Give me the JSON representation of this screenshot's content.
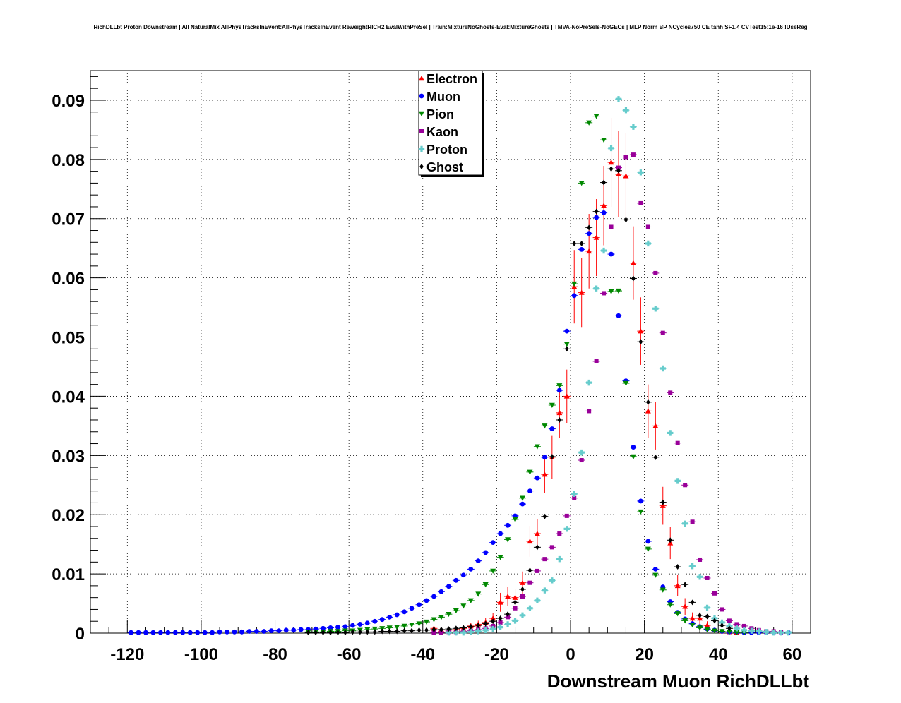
{
  "chart_data": {
    "type": "scatter",
    "title": "RichDLLbt Proton Downstream | All NaturalMix AllPhysTracksInEvent:AllPhysTracksInEvent ReweightRICH2 EvalWithPreSel | Train:MixtureNoGhosts-Eval:MixtureGhosts | TMVA-NoPreSels-NoGECs | MLP Norm BP NCycles750 CE tanh SF1.4 CVTest15:1e-16 !UseReg",
    "xlabel": "Downstream Muon RichDLLbt",
    "ylabel": "",
    "xlim": [
      -130,
      65
    ],
    "ylim": [
      0,
      0.095
    ],
    "xticks": [
      -120,
      -100,
      -80,
      -60,
      -40,
      -20,
      0,
      20,
      40,
      60
    ],
    "yticks": [
      0,
      0.01,
      0.02,
      0.03,
      0.04,
      0.05,
      0.06,
      0.07,
      0.08,
      0.09
    ],
    "xtick_labels": [
      "-120",
      "-100",
      "-80",
      "-60",
      "-40",
      "-20",
      "0",
      "20",
      "40",
      "60"
    ],
    "ytick_labels": [
      "0",
      "0.01",
      "0.02",
      "0.03",
      "0.04",
      "0.05",
      "0.06",
      "0.07",
      "0.08",
      "0.09"
    ],
    "grid": true,
    "legend_position": "top-center",
    "series": [
      {
        "name": "Electron",
        "color": "#ff0000",
        "marker": "triangle-up",
        "x": [
          -37,
          -35,
          -33,
          -31,
          -29,
          -27,
          -25,
          -23,
          -21,
          -19,
          -17,
          -15,
          -13,
          -11,
          -9,
          -7,
          -5,
          -3,
          -1,
          1,
          3,
          5,
          7,
          9,
          11,
          13,
          15,
          17,
          19,
          21,
          23,
          25,
          27,
          29,
          31,
          33,
          35,
          37,
          39,
          41,
          43,
          45
        ],
        "y": [
          0.0008,
          0.0006,
          0.0005,
          0.0006,
          0.0008,
          0.0012,
          0.0015,
          0.0018,
          0.0025,
          0.0052,
          0.0062,
          0.006,
          0.0085,
          0.0155,
          0.0168,
          0.0268,
          0.0297,
          0.0372,
          0.04,
          0.0585,
          0.0575,
          0.0645,
          0.0668,
          0.0722,
          0.0795,
          0.0775,
          0.0772,
          0.0625,
          0.051,
          0.0375,
          0.035,
          0.0215,
          0.0152,
          0.008,
          0.0045,
          0.0025,
          0.0025,
          0.0013,
          0.0005,
          0.0003,
          0.0002,
          0.0001
        ],
        "err": [
          0.0004,
          0.0004,
          0.0003,
          0.0003,
          0.0004,
          0.0005,
          0.0006,
          0.0007,
          0.0009,
          0.0016,
          0.0016,
          0.0015,
          0.0019,
          0.0026,
          0.0025,
          0.0032,
          0.0036,
          0.0043,
          0.0045,
          0.0062,
          0.0058,
          0.0063,
          0.0065,
          0.0067,
          0.0075,
          0.0073,
          0.0072,
          0.0062,
          0.0057,
          0.0045,
          0.004,
          0.0032,
          0.0027,
          0.0018,
          0.0014,
          0.001,
          0.001,
          0.0007,
          0.0004,
          0.0003,
          0.0002,
          0.0001
        ]
      },
      {
        "name": "Muon",
        "color": "#0000ff",
        "marker": "circle",
        "x": [
          -119,
          -117,
          -115,
          -113,
          -111,
          -109,
          -107,
          -105,
          -103,
          -101,
          -99,
          -97,
          -95,
          -93,
          -91,
          -89,
          -87,
          -85,
          -83,
          -81,
          -79,
          -77,
          -75,
          -73,
          -71,
          -69,
          -67,
          -65,
          -63,
          -61,
          -59,
          -57,
          -55,
          -53,
          -51,
          -49,
          -47,
          -45,
          -43,
          -41,
          -39,
          -37,
          -35,
          -33,
          -31,
          -29,
          -27,
          -25,
          -23,
          -21,
          -19,
          -17,
          -15,
          -13,
          -11,
          -9,
          -7,
          -5,
          -3,
          -1,
          1,
          3,
          5,
          7,
          9,
          11,
          13,
          15,
          17,
          19,
          21,
          23,
          25,
          27,
          29,
          31,
          33,
          35,
          37,
          39,
          41,
          43,
          45,
          47,
          49,
          51,
          53,
          55,
          57,
          59
        ],
        "y": [
          0.0001,
          0.0001,
          0.0001,
          0.0001,
          0.0001,
          0.0001,
          0.0001,
          0.0001,
          0.0001,
          0.0001,
          0.0001,
          0.0001,
          0.0002,
          0.0002,
          0.0002,
          0.0002,
          0.0003,
          0.0003,
          0.0003,
          0.0004,
          0.0004,
          0.0005,
          0.0005,
          0.0006,
          0.0006,
          0.0007,
          0.0008,
          0.0009,
          0.001,
          0.0011,
          0.0013,
          0.0015,
          0.0017,
          0.002,
          0.0023,
          0.0027,
          0.0031,
          0.0036,
          0.0042,
          0.0048,
          0.0055,
          0.0062,
          0.007,
          0.0079,
          0.0089,
          0.0098,
          0.0108,
          0.0122,
          0.0136,
          0.0153,
          0.0168,
          0.0182,
          0.0198,
          0.0218,
          0.024,
          0.0262,
          0.0297,
          0.0345,
          0.041,
          0.051,
          0.057,
          0.0648,
          0.0675,
          0.0702,
          0.071,
          0.064,
          0.0536,
          0.0426,
          0.0314,
          0.0223,
          0.0155,
          0.0108,
          0.0078,
          0.0053,
          0.0035,
          0.0024,
          0.0016,
          0.0011,
          0.0007,
          0.0005,
          0.0003,
          0.0002,
          0.0002,
          0.0001,
          0.0001,
          0.0001,
          0.0001,
          0.0001,
          0.0001,
          0.0001
        ],
        "err": [
          3e-05,
          3e-05,
          3e-05,
          3e-05,
          3e-05,
          3e-05,
          3e-05,
          3e-05,
          3e-05,
          3e-05,
          3e-05,
          3e-05,
          3e-05,
          3e-05,
          3e-05,
          3e-05,
          4e-05,
          4e-05,
          4e-05,
          4e-05,
          4e-05,
          5e-05,
          5e-05,
          5e-05,
          5e-05,
          5e-05,
          6e-05,
          6e-05,
          6e-05,
          7e-05,
          7e-05,
          8e-05,
          8e-05,
          9e-05,
          0.0001,
          0.0001,
          0.0001,
          0.0001,
          0.0001,
          0.0001,
          0.0001,
          0.0001,
          0.0001,
          0.0001,
          0.0001,
          0.0001,
          0.0001,
          0.0001,
          0.0001,
          0.0001,
          0.0001,
          0.0001,
          0.0001,
          0.0001,
          0.0001,
          0.0001,
          0.0001,
          0.0001,
          0.0001,
          0.0001,
          0.0001,
          0.0001,
          0.0001,
          0.0001,
          0.0001,
          0.0001,
          0.0001,
          0.0001,
          0.0001,
          0.0001,
          0.0001,
          0.0001,
          0.0001,
          0.0001,
          0.0001,
          0.0001,
          0.0001,
          0.0001,
          0.0001,
          0.0001,
          0.0001,
          0.0001,
          0.0001,
          0.0001,
          0.0001,
          0.0001,
          0.0001,
          0.0001,
          0.0001,
          0.0001
        ]
      },
      {
        "name": "Pion",
        "color": "#008800",
        "marker": "triangle-down",
        "x": [
          -71,
          -69,
          -67,
          -65,
          -63,
          -61,
          -59,
          -57,
          -55,
          -53,
          -51,
          -49,
          -47,
          -45,
          -43,
          -41,
          -39,
          -37,
          -35,
          -33,
          -31,
          -29,
          -27,
          -25,
          -23,
          -21,
          -19,
          -17,
          -15,
          -13,
          -11,
          -9,
          -7,
          -5,
          -3,
          -1,
          1,
          3,
          5,
          7,
          9,
          11,
          13,
          15,
          17,
          19,
          21,
          23,
          25,
          27,
          29,
          31,
          33,
          35,
          37,
          39,
          41,
          43,
          45,
          47
        ],
        "y": [
          0.0002,
          0.0002,
          0.0002,
          0.0003,
          0.0003,
          0.0004,
          0.0004,
          0.0005,
          0.0006,
          0.0007,
          0.0008,
          0.0009,
          0.001,
          0.0012,
          0.0014,
          0.0016,
          0.0019,
          0.0023,
          0.0027,
          0.0032,
          0.0038,
          0.0046,
          0.0055,
          0.0066,
          0.0082,
          0.0105,
          0.0128,
          0.0158,
          0.0192,
          0.0228,
          0.0272,
          0.0315,
          0.035,
          0.0385,
          0.0418,
          0.0488,
          0.059,
          0.076,
          0.0862,
          0.0873,
          0.0833,
          0.0577,
          0.0578,
          0.0422,
          0.0298,
          0.0205,
          0.0142,
          0.0098,
          0.0073,
          0.0048,
          0.0033,
          0.0021,
          0.0014,
          0.0009,
          0.0006,
          0.0004,
          0.0003,
          0.0002,
          0.0001,
          0.0001
        ],
        "err": [
          3e-05,
          3e-05,
          3e-05,
          3e-05,
          3e-05,
          4e-05,
          4e-05,
          4e-05,
          4e-05,
          5e-05,
          5e-05,
          5e-05,
          6e-05,
          6e-05,
          6e-05,
          7e-05,
          7e-05,
          8e-05,
          8e-05,
          9e-05,
          0.0001,
          0.0001,
          0.0001,
          0.0001,
          0.0001,
          0.0001,
          0.0001,
          0.0001,
          0.0001,
          0.0001,
          0.0001,
          0.0001,
          0.0001,
          0.0001,
          0.0001,
          0.0001,
          0.0001,
          0.0001,
          0.0001,
          0.0001,
          0.0001,
          0.0001,
          0.0001,
          0.0001,
          0.0001,
          0.0001,
          0.0001,
          0.0001,
          0.0001,
          0.0001,
          0.0001,
          0.0001,
          0.0001,
          0.0001,
          0.0001,
          0.0001,
          0.0001,
          0.0001,
          0.0001,
          0.0001
        ]
      },
      {
        "name": "Kaon",
        "color": "#990099",
        "marker": "square",
        "x": [
          -37,
          -35,
          -33,
          -31,
          -29,
          -27,
          -25,
          -23,
          -21,
          -19,
          -17,
          -15,
          -13,
          -11,
          -9,
          -7,
          -5,
          -3,
          -1,
          1,
          3,
          5,
          7,
          9,
          11,
          13,
          15,
          17,
          19,
          21,
          23,
          25,
          27,
          29,
          31,
          33,
          35,
          37,
          39,
          41,
          43,
          45,
          47,
          49,
          51,
          53,
          55,
          57
        ],
        "y": [
          0.0001,
          0.0001,
          0.0002,
          0.0002,
          0.0003,
          0.0004,
          0.0006,
          0.0008,
          0.0012,
          0.0018,
          0.0027,
          0.0042,
          0.0062,
          0.0085,
          0.0105,
          0.0125,
          0.0145,
          0.0168,
          0.0198,
          0.0228,
          0.0292,
          0.0375,
          0.0459,
          0.0574,
          0.0686,
          0.0786,
          0.0804,
          0.0808,
          0.0726,
          0.0686,
          0.0608,
          0.0507,
          0.0406,
          0.0321,
          0.025,
          0.0188,
          0.0124,
          0.0093,
          0.0067,
          0.004,
          0.0021,
          0.0015,
          0.0012,
          0.0008,
          0.0005,
          0.0003,
          0.0003,
          0.0002
        ],
        "err": [
          2e-05,
          2e-05,
          3e-05,
          3e-05,
          3e-05,
          4e-05,
          5e-05,
          5e-05,
          6e-05,
          7e-05,
          8e-05,
          0.0001,
          0.0001,
          0.0001,
          0.0001,
          0.0001,
          0.0001,
          0.0001,
          0.0001,
          0.0001,
          0.0001,
          0.0001,
          0.0001,
          0.0001,
          0.0001,
          0.0001,
          0.0001,
          0.0001,
          0.0001,
          0.0001,
          0.0001,
          0.0001,
          0.0001,
          0.0001,
          0.0001,
          0.0001,
          0.0001,
          0.0001,
          0.0001,
          0.0001,
          0.0001,
          0.0001,
          0.0001,
          0.0001,
          0.0001,
          0.0001,
          0.0001,
          0.0001
        ]
      },
      {
        "name": "Proton",
        "color": "#66cccc",
        "marker": "cross",
        "x": [
          -33,
          -31,
          -29,
          -27,
          -25,
          -23,
          -21,
          -19,
          -17,
          -15,
          -13,
          -11,
          -9,
          -7,
          -5,
          -3,
          -1,
          1,
          3,
          5,
          7,
          9,
          11,
          13,
          15,
          17,
          19,
          21,
          23,
          25,
          27,
          29,
          31,
          33,
          35,
          37,
          39,
          41,
          43,
          45,
          47,
          49,
          51,
          53,
          55,
          57,
          59
        ],
        "y": [
          0.0001,
          0.0001,
          0.0001,
          0.0002,
          0.0003,
          0.0005,
          0.0007,
          0.001,
          0.0015,
          0.0021,
          0.003,
          0.0042,
          0.0055,
          0.0072,
          0.0089,
          0.0125,
          0.0176,
          0.0235,
          0.0305,
          0.0423,
          0.0582,
          0.0646,
          0.0819,
          0.0902,
          0.0883,
          0.0855,
          0.0778,
          0.0658,
          0.0548,
          0.0447,
          0.0338,
          0.0257,
          0.0185,
          0.0113,
          0.0095,
          0.0043,
          0.0025,
          0.0018,
          0.0012,
          0.0008,
          0.0005,
          0.0004,
          0.0003,
          0.0002,
          0.0001,
          0.0001,
          0.0001
        ],
        "err": [
          2e-05,
          2e-05,
          2e-05,
          3e-05,
          3e-05,
          4e-05,
          5e-05,
          6e-05,
          7e-05,
          8e-05,
          0.0001,
          0.0001,
          0.0001,
          0.0001,
          0.0001,
          0.0001,
          0.0001,
          0.0001,
          0.0001,
          0.0001,
          0.0001,
          0.0001,
          0.0001,
          0.0001,
          0.0001,
          0.0001,
          0.0001,
          0.0001,
          0.0001,
          0.0001,
          0.0001,
          0.0001,
          0.0001,
          0.0001,
          0.0001,
          0.0001,
          0.0001,
          0.0001,
          0.0001,
          0.0001,
          0.0001,
          0.0001,
          0.0001,
          0.0001,
          0.0001,
          0.0001,
          0.0001
        ]
      },
      {
        "name": "Ghost",
        "color": "#000000",
        "marker": "diamond",
        "x": [
          -71,
          -69,
          -67,
          -65,
          -63,
          -61,
          -59,
          -57,
          -55,
          -53,
          -51,
          -49,
          -47,
          -45,
          -43,
          -41,
          -39,
          -37,
          -35,
          -33,
          -31,
          -29,
          -27,
          -25,
          -23,
          -21,
          -19,
          -17,
          -15,
          -13,
          -11,
          -9,
          -7,
          -5,
          -3,
          -1,
          1,
          3,
          5,
          7,
          9,
          11,
          13,
          15,
          17,
          19,
          21,
          23,
          25,
          27,
          29,
          31,
          33,
          35,
          37,
          39,
          41,
          43
        ],
        "y": [
          0.0001,
          0.0001,
          0.0001,
          0.0001,
          0.0001,
          0.0001,
          0.0002,
          0.0002,
          0.0002,
          0.0002,
          0.0003,
          0.0003,
          0.0003,
          0.0004,
          0.0004,
          0.0005,
          0.0005,
          0.0006,
          0.0006,
          0.0007,
          0.0008,
          0.0009,
          0.0011,
          0.0013,
          0.0016,
          0.002,
          0.0025,
          0.0032,
          0.0052,
          0.0074,
          0.0106,
          0.0145,
          0.0197,
          0.0298,
          0.036,
          0.048,
          0.0658,
          0.0658,
          0.0685,
          0.0712,
          0.0761,
          0.0784,
          0.0781,
          0.0698,
          0.0599,
          0.0492,
          0.039,
          0.0297,
          0.0221,
          0.0157,
          0.0112,
          0.0082,
          0.0052,
          0.003,
          0.0028,
          0.0021,
          0.0013,
          0.0008
        ],
        "err": [
          2e-05,
          2e-05,
          2e-05,
          2e-05,
          2e-05,
          2e-05,
          3e-05,
          3e-05,
          3e-05,
          3e-05,
          3e-05,
          3e-05,
          4e-05,
          4e-05,
          4e-05,
          5e-05,
          5e-05,
          5e-05,
          5e-05,
          6e-05,
          6e-05,
          7e-05,
          7e-05,
          8e-05,
          9e-05,
          0.0001,
          0.0001,
          0.0001,
          0.0001,
          0.0001,
          0.0001,
          0.0001,
          0.0001,
          0.0001,
          0.0001,
          0.0001,
          0.0001,
          0.0001,
          0.0001,
          0.0001,
          0.0001,
          0.0001,
          0.0001,
          0.0001,
          0.0001,
          0.0001,
          0.0001,
          0.0001,
          0.0001,
          0.0001,
          0.0001,
          0.0001,
          0.0001,
          0.0001,
          0.0001,
          0.0001,
          0.0001,
          0.0001
        ]
      }
    ]
  }
}
